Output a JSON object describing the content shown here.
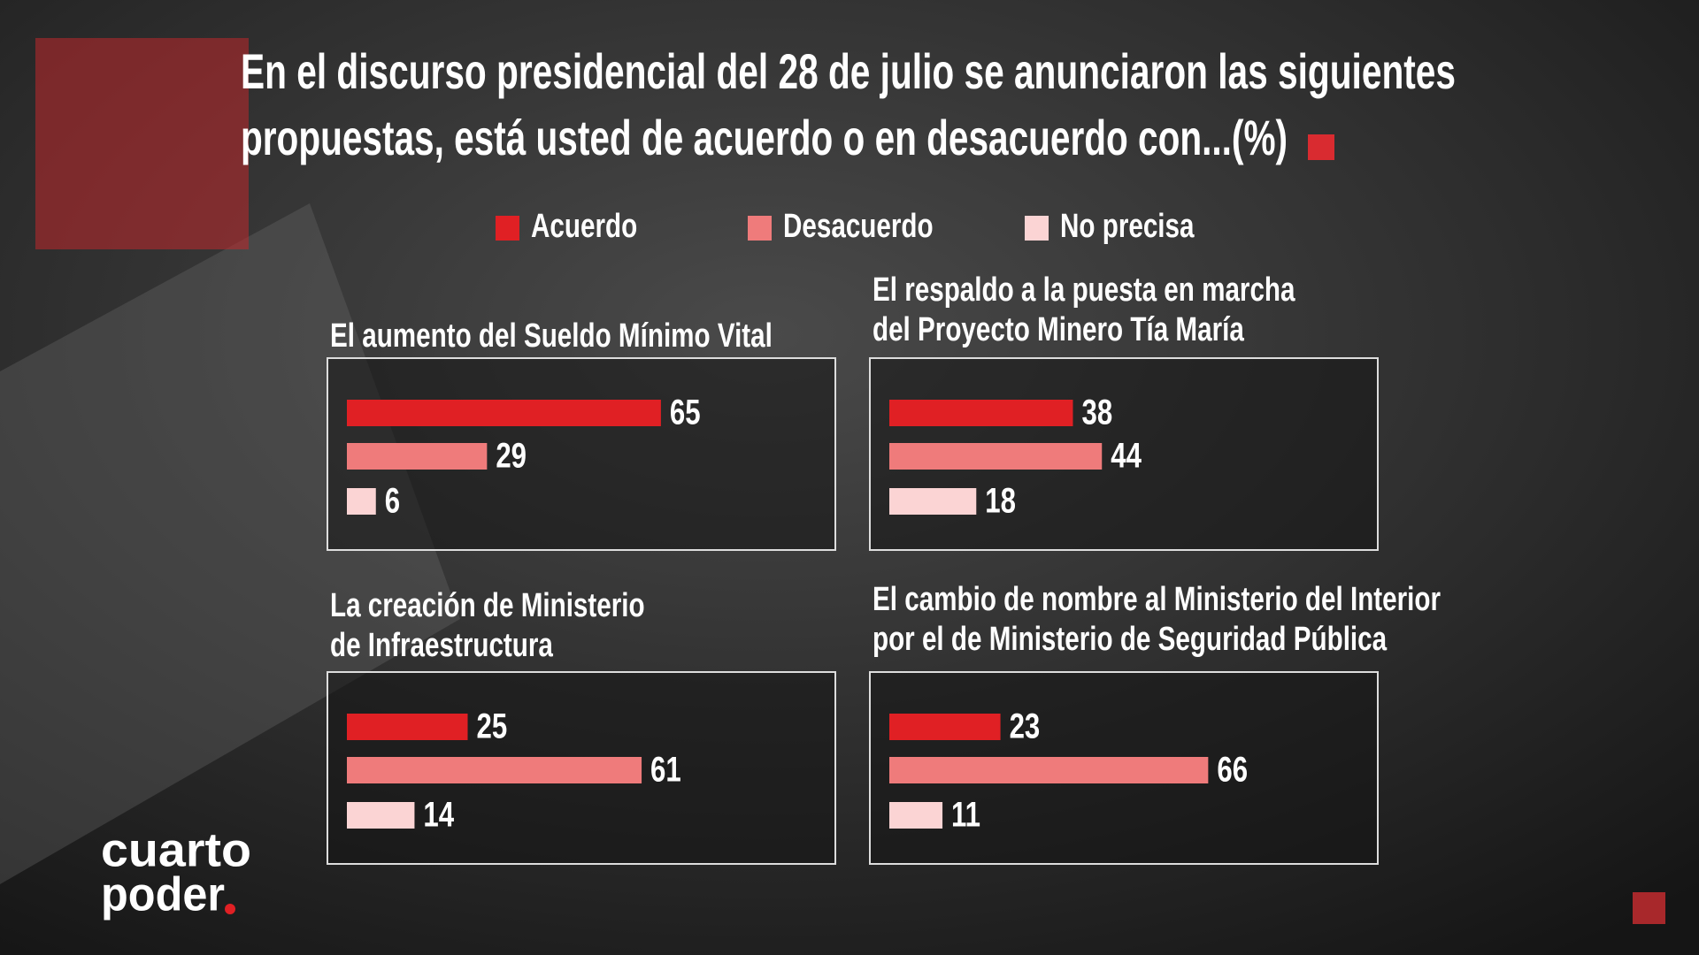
{
  "title": [
    "En el discurso presidencial del 28 de julio se anunciaron las siguientes",
    "propuestas, está usted de acuerdo o en desacuerdo con...(%)"
  ],
  "legend": [
    {
      "name": "Acuerdo",
      "color": "#e02024"
    },
    {
      "name": "Desacuerdo",
      "color": "#ef7b7b"
    },
    {
      "name": "No precisa",
      "color": "#fbd4d4"
    }
  ],
  "chart_data": [
    {
      "type": "bar",
      "title": [
        "El aumento del Sueldo Mínimo Vital"
      ],
      "values": [
        65,
        29,
        6
      ]
    },
    {
      "type": "bar",
      "title": [
        "El respaldo a la puesta en marcha",
        "del Proyecto Minero Tía María"
      ],
      "values": [
        38,
        44,
        18
      ]
    },
    {
      "type": "bar",
      "title": [
        "La creación de Ministerio",
        "de Infraestructura"
      ],
      "values": [
        25,
        61,
        14
      ]
    },
    {
      "type": "bar",
      "title": [
        "El cambio de nombre al Ministerio del Interior",
        "por el de Ministerio de Seguridad Pública"
      ],
      "values": [
        23,
        66,
        11
      ]
    }
  ],
  "logo": [
    "cuarto",
    "poder"
  ]
}
